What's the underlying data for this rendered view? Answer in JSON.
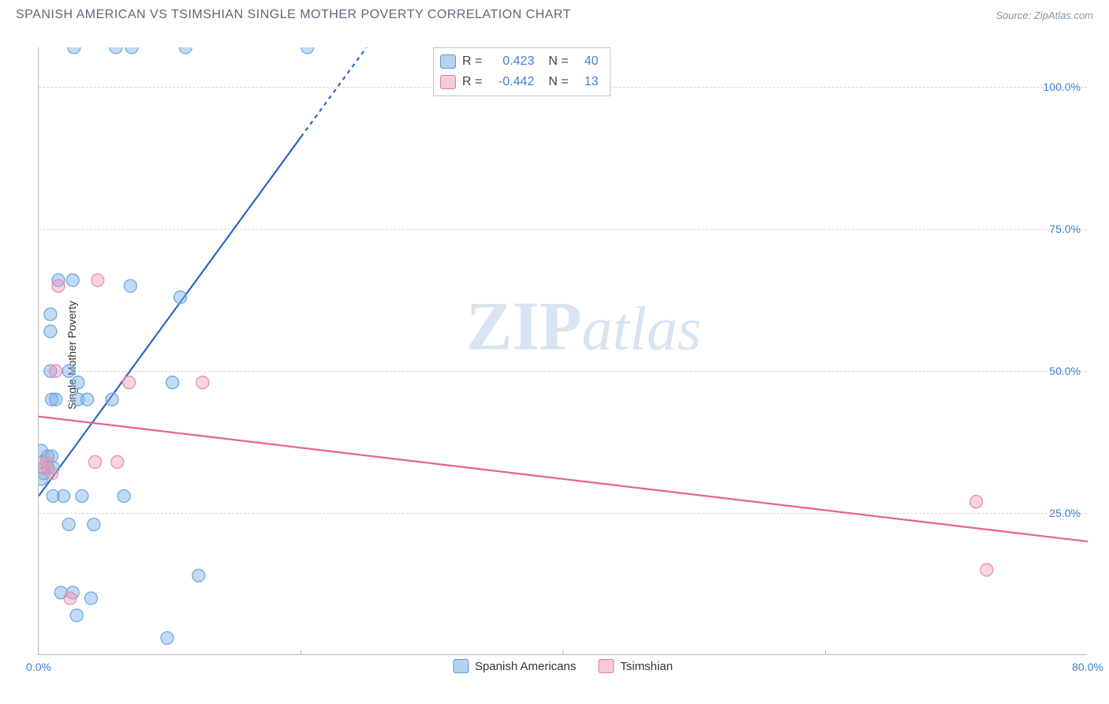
{
  "title": "SPANISH AMERICAN VS TSIMSHIAN SINGLE MOTHER POVERTY CORRELATION CHART",
  "source": "Source: ZipAtlas.com",
  "ylabel": "Single Mother Poverty",
  "watermark_zip": "ZIP",
  "watermark_atlas": "atlas",
  "chart": {
    "type": "scatter",
    "xlim": [
      0,
      80
    ],
    "ylim": [
      0,
      107
    ],
    "xticks": [
      {
        "value": 0,
        "label": "0.0%"
      },
      {
        "value": 80,
        "label": "80.0%"
      }
    ],
    "yticks": [
      {
        "value": 25,
        "label": "25.0%"
      },
      {
        "value": 50,
        "label": "50.0%"
      },
      {
        "value": 75,
        "label": "75.0%"
      },
      {
        "value": 100,
        "label": "100.0%"
      }
    ],
    "x_gridlines": [
      20,
      40,
      60
    ],
    "background_color": "#ffffff",
    "grid_color": "#d6d6d6",
    "axis_color": "#b7b7b7",
    "tick_label_color": "#3d7fd6",
    "series": [
      {
        "name": "Spanish Americans",
        "marker_color_fill": "rgba(120,173,230,0.45)",
        "marker_color_stroke": "#6ea9df",
        "marker_radius": 8,
        "trend": {
          "x1": 0,
          "y1": 28,
          "x2": 25,
          "y2": 107,
          "stroke": "#2f63c9",
          "width": 2.2,
          "dash_from_x": 20
        },
        "points": [
          [
            2.7,
            107
          ],
          [
            5.9,
            107
          ],
          [
            7.1,
            107
          ],
          [
            11.2,
            107
          ],
          [
            20.5,
            107
          ],
          [
            1.5,
            66
          ],
          [
            7.0,
            65
          ],
          [
            10.8,
            63
          ],
          [
            0.9,
            60
          ],
          [
            0.9,
            57
          ],
          [
            0.9,
            50
          ],
          [
            2.3,
            50
          ],
          [
            3.0,
            48
          ],
          [
            10.2,
            48
          ],
          [
            1.3,
            45
          ],
          [
            3.0,
            45
          ],
          [
            3.7,
            45
          ],
          [
            5.6,
            45
          ],
          [
            0.2,
            36
          ],
          [
            0.7,
            35
          ],
          [
            1.0,
            35
          ],
          [
            0.3,
            34
          ],
          [
            0.7,
            33
          ],
          [
            0.4,
            32
          ],
          [
            0.2,
            31
          ],
          [
            1.1,
            33
          ],
          [
            1.1,
            28
          ],
          [
            1.9,
            28
          ],
          [
            3.3,
            28
          ],
          [
            6.5,
            28
          ],
          [
            2.3,
            23
          ],
          [
            4.2,
            23
          ],
          [
            12.2,
            14
          ],
          [
            1.7,
            11
          ],
          [
            2.6,
            11
          ],
          [
            4.0,
            10
          ],
          [
            2.9,
            7
          ],
          [
            9.8,
            3
          ],
          [
            2.6,
            66
          ],
          [
            1.0,
            45
          ]
        ]
      },
      {
        "name": "Tsimshian",
        "marker_color_fill": "rgba(238,150,180,0.42)",
        "marker_color_stroke": "#e88fae",
        "marker_radius": 8,
        "trend": {
          "x1": 0,
          "y1": 42,
          "x2": 80,
          "y2": 20,
          "stroke": "#e56493",
          "width": 2.2
        },
        "points": [
          [
            4.5,
            66
          ],
          [
            1.5,
            65
          ],
          [
            1.3,
            50
          ],
          [
            6.9,
            48
          ],
          [
            12.5,
            48
          ],
          [
            0.4,
            33
          ],
          [
            4.3,
            34
          ],
          [
            6.0,
            34
          ],
          [
            1.0,
            32
          ],
          [
            71.5,
            27
          ],
          [
            72.3,
            15
          ],
          [
            2.4,
            10
          ],
          [
            0.6,
            34
          ]
        ]
      }
    ]
  },
  "stats": [
    {
      "color": "blue",
      "R_label": "R =",
      "R": "0.423",
      "N_label": "N =",
      "N": "40"
    },
    {
      "color": "pink",
      "R_label": "R =",
      "R": "-0.442",
      "N_label": "N =",
      "N": "13"
    }
  ],
  "legend": [
    {
      "color": "blue",
      "label": "Spanish Americans"
    },
    {
      "color": "pink",
      "label": "Tsimshian"
    }
  ]
}
